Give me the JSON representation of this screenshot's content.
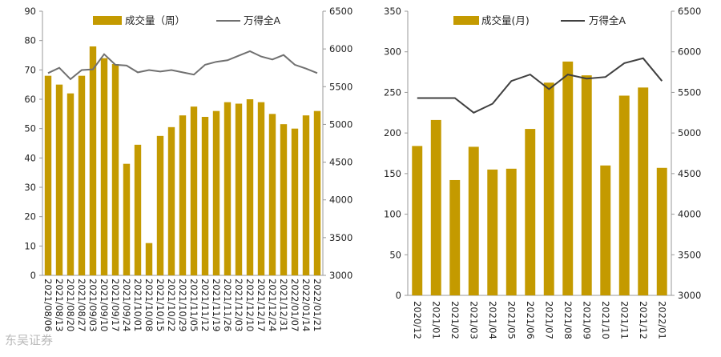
{
  "watermark": "东吴证券",
  "chart_data": [
    {
      "type": "bar",
      "legend": {
        "bar": "成交量（周）",
        "line": "万得全A"
      },
      "colors": {
        "bar": "#C49A00",
        "line": "#707070"
      },
      "categories": [
        "2021/08/06",
        "2021/08/13",
        "2021/08/20",
        "2021/08/27",
        "2021/09/03",
        "2021/09/10",
        "2021/09/17",
        "2021/09/24",
        "2021/10/01",
        "2021/10/08",
        "2021/10/15",
        "2021/10/22",
        "2021/10/29",
        "2021/11/05",
        "2021/11/12",
        "2021/11/19",
        "2021/11/26",
        "2021/12/03",
        "2021/12/10",
        "2021/12/17",
        "2021/12/24",
        "2021/12/31",
        "2022/01/07",
        "2022/01/14",
        "2022/01/21"
      ],
      "x_tick_labels": [
        "2021/08/06",
        "2021/08/13",
        "2021/08/20",
        "2021/08/27",
        "2021/09/03",
        "2021/09/10",
        "2021/09/17",
        "2021/09/24",
        "2021/10/01",
        "2021/10/08",
        "2021/10/15",
        "2021/10/22",
        "2021/10/29",
        "2021/11/05",
        "2021/11/12",
        "2021/11/19",
        "2021/11/26",
        "2021/12/03",
        "2021/12/10",
        "2021/12/17",
        "2021/12/24",
        "2021/12/31",
        "2022/01/07",
        "2022/01/14",
        "2022/01/21"
      ],
      "series": [
        {
          "name": "成交量（周）",
          "axis": "left",
          "values": [
            68,
            65,
            62,
            68,
            78,
            74,
            72,
            38,
            44.5,
            11,
            47.5,
            50.5,
            54.5,
            57.5,
            54,
            56,
            59,
            58.5,
            60,
            59,
            55,
            51.5,
            50,
            54.5,
            56
          ]
        },
        {
          "name": "万得全A",
          "axis": "right",
          "values": [
            5680,
            5750,
            5600,
            5720,
            5730,
            5930,
            5790,
            5780,
            5690,
            5720,
            5700,
            5720,
            5690,
            5660,
            5790,
            5830,
            5850,
            5910,
            5970,
            5900,
            5860,
            5920,
            5790,
            5740,
            5680
          ]
        }
      ],
      "ylim_left": [
        0,
        90
      ],
      "yticks_left": [
        0,
        10,
        20,
        30,
        40,
        50,
        60,
        70,
        80,
        90
      ],
      "ylim_right": [
        3000,
        6500
      ],
      "yticks_right": [
        3000,
        3500,
        4000,
        4500,
        5000,
        5500,
        6000,
        6500
      ],
      "legend_position": "top"
    },
    {
      "type": "bar",
      "legend": {
        "bar": "成交量(月)",
        "line": "万得全A"
      },
      "colors": {
        "bar": "#C49A00",
        "line": "#404040"
      },
      "categories": [
        "2020/12",
        "2021/01",
        "2021/02",
        "2021/03",
        "2021/04",
        "2021/05",
        "2021/06",
        "2021/07",
        "2021/08",
        "2021/09",
        "2021/10",
        "2021/11",
        "2021/12",
        "2022/01"
      ],
      "series": [
        {
          "name": "成交量(月)",
          "axis": "left",
          "values": [
            184,
            216,
            142,
            183,
            155,
            156,
            205,
            262,
            288,
            271,
            160,
            246,
            256,
            157
          ]
        },
        {
          "name": "万得全A",
          "axis": "right",
          "values": [
            5430,
            5430,
            5430,
            5250,
            5360,
            5640,
            5720,
            5540,
            5720,
            5670,
            5690,
            5860,
            5920,
            5640
          ]
        }
      ],
      "ylim_left": [
        0,
        350
      ],
      "yticks_left": [
        0,
        50,
        100,
        150,
        200,
        250,
        300,
        350
      ],
      "ylim_right": [
        3000,
        6500
      ],
      "yticks_right": [
        3000,
        3500,
        4000,
        4500,
        5000,
        5500,
        6000,
        6500
      ],
      "legend_position": "top"
    }
  ]
}
